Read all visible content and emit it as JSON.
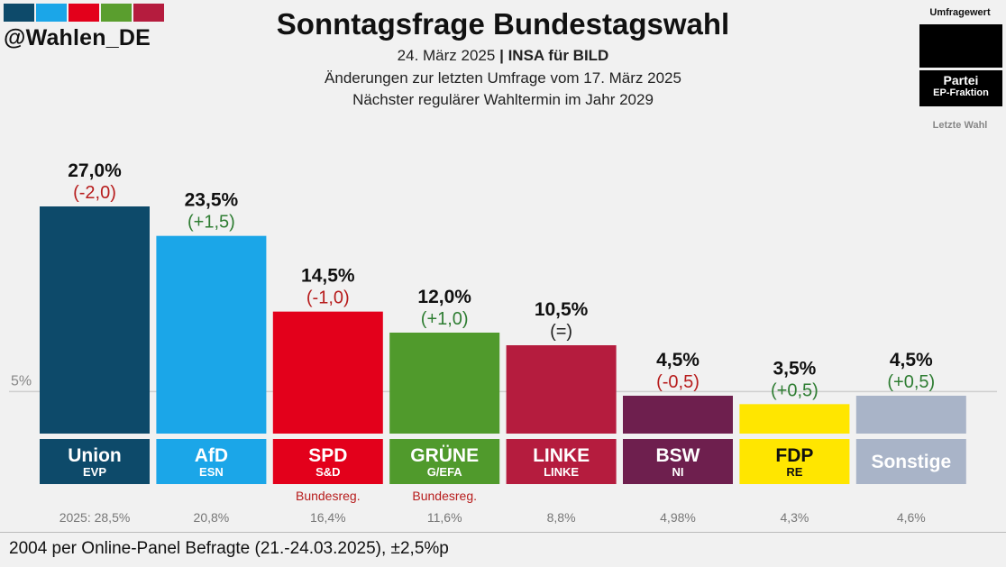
{
  "brand": {
    "handle": "@Wahlen_DE",
    "strip_colors": [
      "#0d4a6a",
      "#1ba6e8",
      "#e3001b",
      "#5a9e2e",
      "#b51c3e"
    ]
  },
  "header": {
    "title": "Sonntagsfrage Bundestagswahl",
    "date": "24. März 2025",
    "separator": "|",
    "institute": "INSA für BILD",
    "changes_note": "Änderungen zur letzten Umfrage vom 17. März 2025",
    "next_election": "Nächster regulärer Wahltermin im Jahr 2029"
  },
  "legend": {
    "poll_value_label": "Umfragewert",
    "party_label": "Partei",
    "ep_group_label": "EP-Fraktion",
    "last_election_label": "Letzte Wahl"
  },
  "chart_data": {
    "type": "bar",
    "title": "Sonntagsfrage Bundestagswahl",
    "unit": "%",
    "ylim": [
      0,
      27
    ],
    "reference_line": {
      "value": 5,
      "label": "5%"
    },
    "categories": [
      "Union",
      "AfD",
      "SPD",
      "GRÜNE",
      "LINKE",
      "BSW",
      "FDP",
      "Sonstige"
    ],
    "ep_groups": [
      "EVP",
      "ESN",
      "S&D",
      "G/EFA",
      "LINKE",
      "NI",
      "RE",
      ""
    ],
    "values": [
      27.0,
      23.5,
      14.5,
      12.0,
      10.5,
      4.5,
      3.5,
      4.5
    ],
    "value_labels": [
      "27,0%",
      "23,5%",
      "14,5%",
      "12,0%",
      "10,5%",
      "4,5%",
      "3,5%",
      "4,5%"
    ],
    "changes": [
      -2.0,
      1.5,
      -1.0,
      1.0,
      0,
      -0.5,
      0.5,
      0.5
    ],
    "change_labels": [
      "(-2,0)",
      "(+1,5)",
      "(-1,0)",
      "(+1,0)",
      "(=)",
      "(-0,5)",
      "(+0,5)",
      "(+0,5)"
    ],
    "last_election": [
      28.5,
      20.8,
      16.4,
      11.6,
      8.8,
      4.98,
      4.3,
      4.6
    ],
    "last_election_labels": [
      "2025: 28,5%",
      "20,8%",
      "16,4%",
      "11,6%",
      "8,8%",
      "4,98%",
      "4,3%",
      "4,6%"
    ],
    "notes": [
      "",
      "",
      "Bundesreg.",
      "Bundesreg.",
      "",
      "",
      "",
      ""
    ],
    "colors": [
      "#0d4a6a",
      "#1ba6e8",
      "#e3001b",
      "#509a2c",
      "#b51c3e",
      "#6e1f4e",
      "#ffe600",
      "#a9b4c8"
    ],
    "label_text_colors": [
      "#ffffff",
      "#ffffff",
      "#ffffff",
      "#ffffff",
      "#ffffff",
      "#ffffff",
      "#111111",
      "#ffffff"
    ],
    "change_colors": {
      "negative": "#b71c1c",
      "positive": "#2e7d32",
      "neutral": "#222222"
    }
  },
  "footer": {
    "sample_note": "2004 per Online-Panel Befragte (21.-24.03.2025), ±2,5%p"
  }
}
